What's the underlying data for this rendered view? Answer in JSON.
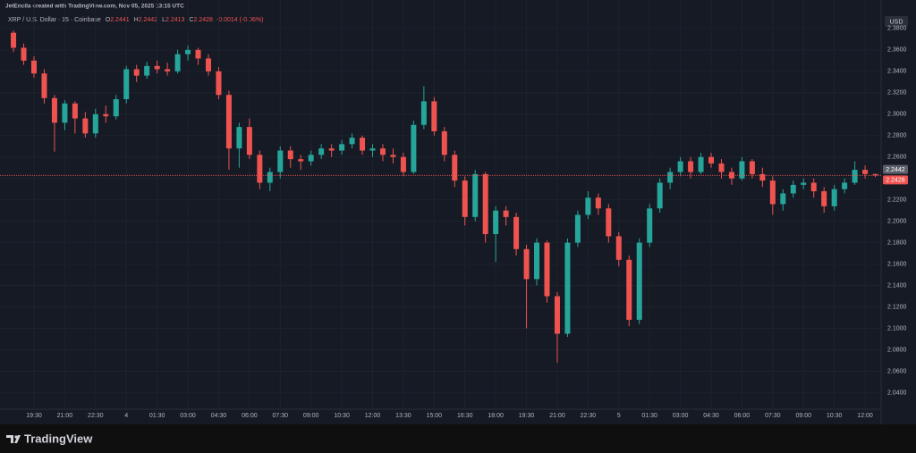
{
  "chart_data": {
    "type": "candlestick",
    "header": "JetEncila created with TradingView.com, Nov 05, 2025 13:15 UTC",
    "symbol": "XRP / U.S. Dollar · 15 · Coinbase",
    "ohlc_legend": [
      {
        "key": "O",
        "value": 2.2441
      },
      {
        "key": "H",
        "value": 2.2442
      },
      {
        "key": "L",
        "value": 2.2413
      },
      {
        "key": "C",
        "value": 2.2428
      }
    ],
    "change": "-0.0014 (-0.06%)",
    "currency": "USD",
    "up_color": "#26a69a",
    "down_color": "#ef5350",
    "categories": [
      null,
      null,
      "19:30",
      null,
      null,
      "21:00",
      null,
      null,
      "22:30",
      null,
      null,
      "4",
      null,
      null,
      "01:30",
      null,
      null,
      "03:00",
      null,
      null,
      "04:30",
      null,
      null,
      "06:00",
      null,
      null,
      "07:30",
      null,
      null,
      "09:00",
      null,
      null,
      "10:30",
      null,
      null,
      "12:00",
      null,
      null,
      "13:30",
      null,
      null,
      "15:00",
      null,
      null,
      "16:30",
      null,
      null,
      "18:00",
      null,
      null,
      "19:30",
      null,
      null,
      "21:00",
      null,
      null,
      "22:30",
      null,
      null,
      "5",
      null,
      null,
      "01:30",
      null,
      null,
      "03:00",
      null,
      null,
      "04:30",
      null,
      null,
      "06:00",
      null,
      null,
      "07:30",
      null,
      null,
      "09:00",
      null,
      null,
      "10:30",
      null,
      null,
      "12:00",
      null
    ],
    "open": [
      2.376,
      2.362,
      2.35,
      2.338,
      2.315,
      2.292,
      2.31,
      2.296,
      2.282,
      2.3,
      2.298,
      2.314,
      2.342,
      2.336,
      2.345,
      2.342,
      2.34,
      2.356,
      2.36,
      2.352,
      2.34,
      2.318,
      2.268,
      2.288,
      2.262,
      2.236,
      2.246,
      2.266,
      2.258,
      2.256,
      2.262,
      2.268,
      2.266,
      2.272,
      2.278,
      2.266,
      2.268,
      2.262,
      2.26,
      2.246,
      2.29,
      2.312,
      2.284,
      2.262,
      2.238,
      2.204,
      2.244,
      2.188,
      2.21,
      2.204,
      2.174,
      2.146,
      2.18,
      2.13,
      2.095,
      2.18,
      2.206,
      2.222,
      2.212,
      2.186,
      2.164,
      2.108,
      2.18,
      2.212,
      2.236,
      2.246,
      2.256,
      2.246,
      2.26,
      2.254,
      2.246,
      2.24,
      2.256,
      2.244,
      2.238,
      2.216,
      2.226,
      2.234,
      2.236,
      2.228,
      2.214,
      2.23,
      2.236,
      2.248,
      2.2441
    ],
    "high": [
      2.378,
      2.366,
      2.354,
      2.342,
      2.318,
      2.313,
      2.312,
      2.302,
      2.305,
      2.308,
      2.318,
      2.345,
      2.346,
      2.349,
      2.35,
      2.348,
      2.36,
      2.364,
      2.362,
      2.356,
      2.344,
      2.322,
      2.292,
      2.296,
      2.266,
      2.25,
      2.27,
      2.27,
      2.262,
      2.266,
      2.272,
      2.272,
      2.276,
      2.282,
      2.28,
      2.272,
      2.272,
      2.268,
      2.264,
      2.294,
      2.326,
      2.316,
      2.288,
      2.266,
      2.242,
      2.248,
      2.246,
      2.214,
      2.214,
      2.208,
      2.178,
      2.184,
      2.182,
      2.134,
      2.184,
      2.21,
      2.228,
      2.226,
      2.216,
      2.19,
      2.168,
      2.184,
      2.216,
      2.24,
      2.25,
      2.26,
      2.26,
      2.264,
      2.264,
      2.258,
      2.25,
      2.26,
      2.258,
      2.25,
      2.242,
      2.23,
      2.238,
      2.24,
      2.24,
      2.232,
      2.234,
      2.24,
      2.256,
      2.252,
      2.2442
    ],
    "low": [
      2.358,
      2.346,
      2.334,
      2.31,
      2.265,
      2.285,
      2.282,
      2.278,
      2.278,
      2.292,
      2.295,
      2.31,
      2.33,
      2.333,
      2.338,
      2.336,
      2.338,
      2.35,
      2.346,
      2.336,
      2.314,
      2.248,
      2.25,
      2.258,
      2.23,
      2.228,
      2.24,
      2.25,
      2.248,
      2.252,
      2.258,
      2.26,
      2.262,
      2.268,
      2.262,
      2.26,
      2.256,
      2.254,
      2.242,
      2.244,
      2.286,
      2.28,
      2.256,
      2.232,
      2.196,
      2.2,
      2.18,
      2.162,
      2.196,
      2.168,
      2.1,
      2.14,
      2.124,
      2.068,
      2.092,
      2.176,
      2.202,
      2.206,
      2.18,
      2.158,
      2.102,
      2.104,
      2.176,
      2.208,
      2.23,
      2.242,
      2.24,
      2.244,
      2.25,
      2.24,
      2.234,
      2.238,
      2.24,
      2.232,
      2.206,
      2.21,
      2.222,
      2.23,
      2.222,
      2.208,
      2.21,
      2.226,
      2.234,
      2.24,
      2.2413
    ],
    "close": [
      2.362,
      2.35,
      2.338,
      2.315,
      2.292,
      2.31,
      2.296,
      2.282,
      2.3,
      2.298,
      2.314,
      2.342,
      2.336,
      2.345,
      2.342,
      2.34,
      2.356,
      2.36,
      2.352,
      2.34,
      2.318,
      2.268,
      2.288,
      2.262,
      2.236,
      2.246,
      2.266,
      2.258,
      2.256,
      2.262,
      2.268,
      2.266,
      2.272,
      2.278,
      2.266,
      2.268,
      2.262,
      2.26,
      2.246,
      2.29,
      2.312,
      2.284,
      2.262,
      2.238,
      2.204,
      2.244,
      2.188,
      2.21,
      2.204,
      2.174,
      2.146,
      2.18,
      2.13,
      2.095,
      2.18,
      2.206,
      2.222,
      2.212,
      2.186,
      2.164,
      2.108,
      2.18,
      2.212,
      2.236,
      2.246,
      2.256,
      2.246,
      2.26,
      2.254,
      2.246,
      2.24,
      2.256,
      2.244,
      2.238,
      2.216,
      2.226,
      2.234,
      2.236,
      2.228,
      2.214,
      2.23,
      2.236,
      2.248,
      2.2441,
      2.2428
    ],
    "ylim": [
      2.0245,
      2.4066
    ],
    "yticks": [
      {
        "value": 2.04,
        "label": "2.0400"
      },
      {
        "value": 2.06,
        "label": "2.0600"
      },
      {
        "value": 2.08,
        "label": "2.0800"
      },
      {
        "value": 2.1,
        "label": "2.1000"
      },
      {
        "value": 2.12,
        "label": "2.1200"
      },
      {
        "value": 2.14,
        "label": "2.1400"
      },
      {
        "value": 2.16,
        "label": "2.1600"
      },
      {
        "value": 2.18,
        "label": "2.1800"
      },
      {
        "value": 2.2,
        "label": "2.2000"
      },
      {
        "value": 2.22,
        "label": "2.2200"
      },
      {
        "value": 2.24,
        "label": "2.2400"
      },
      {
        "value": 2.26,
        "label": "2.2600"
      },
      {
        "value": 2.28,
        "label": "2.2800"
      },
      {
        "value": 2.3,
        "label": "2.3000"
      },
      {
        "value": 2.32,
        "label": "2.3200"
      },
      {
        "value": 2.34,
        "label": "2.3400"
      },
      {
        "value": 2.36,
        "label": "2.3600"
      },
      {
        "value": 2.38,
        "label": "2.3800"
      }
    ],
    "grid": true,
    "price_tags": [
      {
        "value": 2.2442,
        "color": "#5d606b"
      },
      {
        "value": 2.2428,
        "color": "#ef5350"
      }
    ]
  },
  "watermark": {
    "brand": "TradingView"
  }
}
